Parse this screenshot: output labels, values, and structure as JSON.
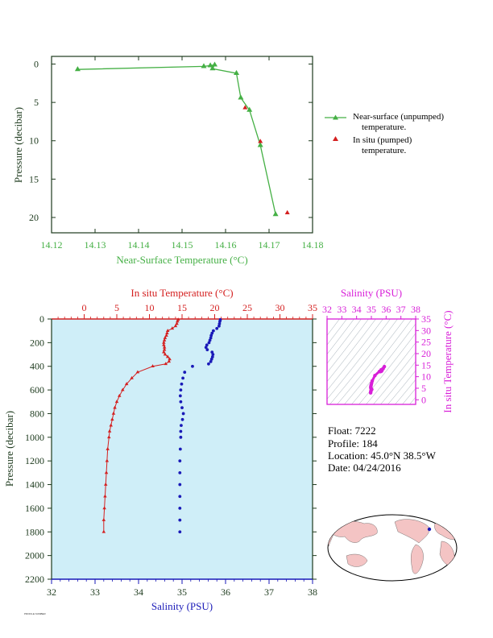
{
  "colors": {
    "green": "#45b045",
    "dark": "#1d3a1d",
    "red": "#d42020",
    "blue": "#1a1ab8",
    "magenta": "#d81fd8",
    "panel_bg": "#cfeef8",
    "land": "#f4c4c4"
  },
  "chart_data": [
    {
      "type": "line",
      "xlabel": "Near-Surface Temperature (°C)",
      "ylabel": "Pressure (decibar)",
      "xlim": [
        14.12,
        14.18
      ],
      "ylim": [
        22,
        -1
      ],
      "xticks": [
        "14.12",
        "14.13",
        "14.14",
        "14.15",
        "14.16",
        "14.17",
        "14.18"
      ],
      "xtick_values": [
        14.12,
        14.13,
        14.14,
        14.15,
        14.16,
        14.17,
        14.18
      ],
      "yticks": [
        "0",
        "5",
        "10",
        "15",
        "20"
      ],
      "ytick_values": [
        0,
        5,
        10,
        15,
        20
      ],
      "series": [
        {
          "name": "Near-surface (unpumped) temperature.",
          "marker": "triangle-line",
          "x": [
            14.126,
            14.155,
            14.1565,
            14.1575,
            14.157,
            14.1625,
            14.1635,
            14.1655,
            14.168,
            14.1715
          ],
          "y": [
            0.7,
            0.3,
            0.2,
            0.1,
            0.6,
            1.2,
            4.4,
            6.0,
            10.6,
            19.6
          ]
        },
        {
          "name": "In situ (pumped) temperature.",
          "marker": "triangle",
          "x": [
            14.1645,
            14.168,
            14.1742
          ],
          "y": [
            5.7,
            10.1,
            19.4
          ]
        }
      ],
      "legend": [
        {
          "line1": "Near-surface (unpumped)",
          "line2": "temperature."
        },
        {
          "line1": "In situ (pumped)",
          "line2": "temperature."
        }
      ],
      "legend_position": "right"
    },
    {
      "type": "line",
      "x_top_label": "In situ Temperature (°C)",
      "x_bottom_label": "Salinity (PSU)",
      "ylabel": "Pressure (decibar)",
      "temp_xlim": [
        -5,
        35
      ],
      "sal_xlim": [
        32,
        38
      ],
      "ylim": [
        2200,
        0
      ],
      "temp_ticks": [
        "0",
        "5",
        "10",
        "15",
        "20",
        "25",
        "30",
        "35"
      ],
      "temp_tick_values": [
        0,
        5,
        10,
        15,
        20,
        25,
        30,
        35
      ],
      "sal_ticks": [
        "32",
        "33",
        "34",
        "35",
        "36",
        "37",
        "38"
      ],
      "sal_tick_values": [
        32,
        33,
        34,
        35,
        36,
        37,
        38
      ],
      "pressure_ticks": [
        "0",
        "200",
        "400",
        "600",
        "800",
        "1000",
        "1200",
        "1400",
        "1600",
        "1800",
        "2000",
        "2200"
      ],
      "pressure_tick_values": [
        0,
        200,
        400,
        600,
        800,
        1000,
        1200,
        1400,
        1600,
        1800,
        2000,
        2200
      ],
      "temperature": {
        "pressure": [
          5,
          20,
          40,
          60,
          80,
          100,
          120,
          140,
          160,
          180,
          200,
          220,
          240,
          260,
          280,
          300,
          320,
          340,
          360,
          380,
          400,
          450,
          500,
          550,
          600,
          650,
          700,
          750,
          800,
          850,
          900,
          950,
          1000,
          1100,
          1200,
          1300,
          1400,
          1500,
          1600,
          1700,
          1800
        ],
        "value": [
          14.4,
          14.3,
          14.2,
          14.0,
          13.5,
          12.8,
          12.7,
          12.6,
          12.4,
          12.3,
          12.2,
          12.2,
          12.3,
          12.3,
          12.2,
          12.4,
          12.8,
          13.1,
          13.0,
          12.5,
          10.5,
          8.2,
          7.3,
          6.5,
          5.9,
          5.4,
          5.0,
          4.7,
          4.5,
          4.3,
          4.1,
          3.9,
          3.8,
          3.6,
          3.5,
          3.4,
          3.3,
          3.2,
          3.1,
          3.0,
          3.0
        ]
      },
      "salinity": {
        "pressure": [
          5,
          20,
          40,
          60,
          80,
          100,
          120,
          140,
          160,
          180,
          200,
          220,
          240,
          260,
          280,
          300,
          320,
          340,
          360,
          380,
          400,
          450,
          500,
          550,
          600,
          650,
          700,
          750,
          800,
          850,
          900,
          950,
          1000,
          1100,
          1200,
          1300,
          1400,
          1500,
          1600,
          1700,
          1800
        ],
        "value": [
          35.88,
          35.87,
          35.86,
          35.85,
          35.8,
          35.72,
          35.69,
          35.67,
          35.66,
          35.64,
          35.62,
          35.57,
          35.55,
          35.58,
          35.69,
          35.71,
          35.7,
          35.68,
          35.66,
          35.61,
          35.24,
          35.06,
          35.02,
          34.99,
          34.97,
          34.96,
          34.97,
          35.0,
          35.03,
          35.01,
          34.98,
          34.97,
          34.97,
          34.96,
          34.95,
          34.95,
          34.95,
          34.95,
          34.95,
          34.95,
          34.95
        ]
      }
    },
    {
      "type": "scatter",
      "xlabel": "Salinity (PSU)",
      "ylabel": "In situ Temperature (°C)",
      "xlim": [
        32,
        38
      ],
      "ylim": [
        -2,
        35
      ],
      "xticks": [
        "32",
        "33",
        "34",
        "35",
        "36",
        "37",
        "38"
      ],
      "xtick_values": [
        32,
        33,
        34,
        35,
        36,
        37,
        38
      ],
      "yticks": [
        "0",
        "5",
        "10",
        "15",
        "20",
        "25",
        "30",
        "35"
      ],
      "ytick_values": [
        0,
        5,
        10,
        15,
        20,
        25,
        30,
        35
      ],
      "points_s": [
        35.88,
        35.8,
        35.72,
        35.66,
        35.62,
        35.55,
        35.58,
        35.69,
        35.66,
        35.24,
        35.06,
        35.02,
        34.99,
        34.97,
        34.96,
        34.97,
        35.0,
        35.03,
        34.98,
        34.97,
        34.96,
        34.95
      ],
      "points_t": [
        14.4,
        13.5,
        12.8,
        12.4,
        12.2,
        12.3,
        12.2,
        12.4,
        13.0,
        10.5,
        8.2,
        7.3,
        6.5,
        5.9,
        5.4,
        5.0,
        4.7,
        4.5,
        4.1,
        3.8,
        3.5,
        3.0
      ]
    }
  ],
  "info": {
    "float": "Float:  7222",
    "profile": "Profile:  184",
    "location": "Location:  45.0°N  38.5°W",
    "date": "Date:  04/24/2016"
  },
  "footer": {
    "tiny_text": "PROFILE NUMBER"
  }
}
